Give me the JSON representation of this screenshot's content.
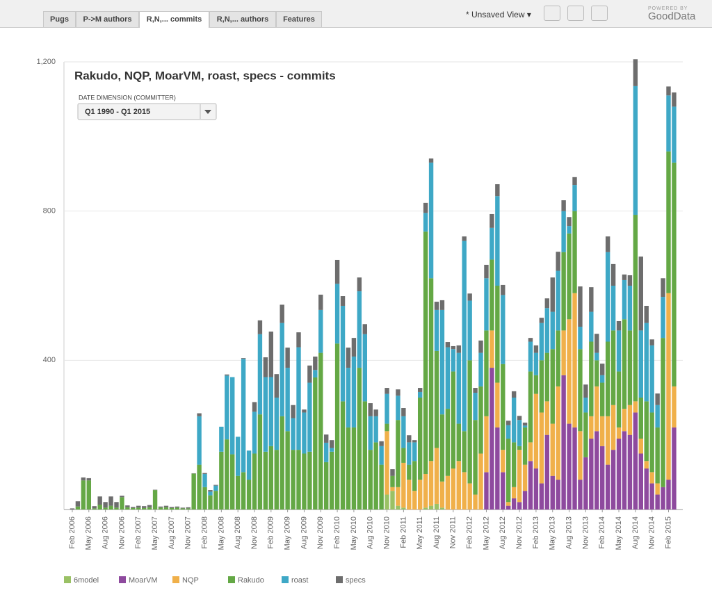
{
  "ui": {
    "tabs": [
      "Pugs",
      "P->M authors",
      "R,N,... commits",
      "R,N,... authors",
      "Features"
    ],
    "view": "* Unsaved View",
    "powered_by": "POWERED BY",
    "brand": "GoodData",
    "filter_label": "DATE DIMENSION (COMMITTER)",
    "filter_value": "Q1 1990 - Q1 2015"
  },
  "chart_data": {
    "type": "stacked_bar",
    "title": "Rakudo, NQP, MoarVM, roast, specs - commits",
    "categories": [
      "Feb 2006",
      null,
      null,
      "May 2006",
      null,
      null,
      "Aug 2006",
      null,
      null,
      "Nov 2006",
      null,
      null,
      "Feb 2007",
      null,
      null,
      "May 2007",
      null,
      null,
      "Aug 2007",
      null,
      null,
      "Nov 2007",
      null,
      null,
      "Feb 2008",
      null,
      null,
      "May 2008",
      null,
      null,
      "Aug 2008",
      null,
      null,
      "Nov 2008",
      null,
      null,
      "Feb 2009",
      null,
      null,
      "May 2009",
      null,
      null,
      "Aug 2009",
      null,
      null,
      "Nov 2009",
      null,
      null,
      "Feb 2010",
      null,
      null,
      "May 2010",
      null,
      null,
      "Aug 2010",
      null,
      null,
      "Nov 2010",
      null,
      null,
      "Feb 2011",
      null,
      null,
      "May 2011",
      null,
      null,
      "Aug 2011",
      null,
      null,
      "Nov 2011",
      null,
      null,
      "Feb 2012",
      null,
      null,
      "May 2012",
      null,
      null,
      "Aug 2012",
      null,
      null,
      "Nov 2012",
      null,
      null,
      "Feb 2013",
      null,
      null,
      "May 2013",
      null,
      null,
      "Aug 2013",
      null,
      null,
      "Nov 2013",
      null,
      null,
      "Feb 2014",
      null,
      null,
      "May 2014",
      null,
      null,
      "Aug 2014",
      null,
      null,
      "Nov 2014",
      null,
      null,
      "Feb 2015",
      null
    ],
    "ylim": [
      0,
      1200
    ],
    "yticks": [
      400,
      800,
      {
        "value": 1200,
        "label": "1,200"
      }
    ],
    "grid": true,
    "series": [
      {
        "name": "6model",
        "color": "#9ac165",
        "values": [
          0,
          0,
          0,
          0,
          0,
          0,
          0,
          0,
          0,
          0,
          0,
          0,
          0,
          0,
          0,
          0,
          0,
          0,
          0,
          0,
          0,
          0,
          0,
          0,
          0,
          0,
          0,
          0,
          0,
          0,
          0,
          0,
          0,
          0,
          0,
          0,
          0,
          0,
          0,
          0,
          0,
          0,
          0,
          0,
          0,
          0,
          0,
          0,
          0,
          0,
          0,
          0,
          0,
          0,
          0,
          0,
          0,
          40,
          50,
          10,
          5,
          0,
          0,
          0,
          5,
          10,
          15,
          5,
          0,
          0,
          0,
          0,
          0,
          0,
          0,
          0,
          0,
          0,
          0,
          0,
          0,
          0,
          0,
          0,
          0,
          0,
          0,
          0,
          0,
          0,
          0,
          0,
          0,
          0,
          0,
          0,
          0,
          0,
          0,
          0,
          0,
          0,
          0,
          0,
          0,
          0,
          0,
          0,
          0,
          0
        ]
      },
      {
        "name": "MoarVM",
        "color": "#8e4a9e",
        "values": [
          0,
          0,
          0,
          0,
          0,
          0,
          0,
          0,
          0,
          0,
          0,
          0,
          0,
          0,
          0,
          0,
          0,
          0,
          0,
          0,
          0,
          0,
          0,
          0,
          0,
          0,
          0,
          0,
          0,
          0,
          0,
          0,
          0,
          0,
          0,
          0,
          0,
          0,
          0,
          0,
          0,
          0,
          0,
          0,
          0,
          0,
          0,
          0,
          0,
          0,
          0,
          0,
          0,
          0,
          0,
          0,
          0,
          0,
          0,
          0,
          0,
          0,
          0,
          0,
          0,
          0,
          0,
          0,
          0,
          0,
          0,
          0,
          0,
          0,
          0,
          100,
          380,
          220,
          100,
          10,
          30,
          20,
          50,
          130,
          110,
          70,
          200,
          90,
          80,
          360,
          230,
          220,
          80,
          140,
          190,
          210,
          170,
          120,
          160,
          190,
          210,
          200,
          260,
          150,
          110,
          70,
          40,
          60,
          80,
          220
        ]
      },
      {
        "name": "NQP",
        "color": "#f0b04a",
        "values": [
          0,
          0,
          0,
          0,
          0,
          0,
          0,
          0,
          0,
          0,
          0,
          0,
          0,
          0,
          0,
          0,
          0,
          0,
          0,
          0,
          0,
          0,
          0,
          0,
          0,
          0,
          0,
          0,
          0,
          0,
          0,
          0,
          0,
          0,
          0,
          0,
          0,
          0,
          0,
          0,
          0,
          0,
          0,
          0,
          0,
          0,
          0,
          0,
          0,
          0,
          0,
          0,
          0,
          0,
          0,
          0,
          0,
          170,
          10,
          50,
          120,
          80,
          50,
          80,
          90,
          120,
          150,
          70,
          90,
          110,
          130,
          100,
          70,
          40,
          150,
          150,
          100,
          120,
          60,
          10,
          30,
          140,
          70,
          50,
          200,
          190,
          90,
          140,
          250,
          120,
          280,
          360,
          130,
          0,
          60,
          120,
          80,
          130,
          120,
          30,
          60,
          80,
          30,
          40,
          20,
          30,
          30,
          0,
          500,
          110
        ]
      },
      {
        "name": "Rakudo",
        "color": "#64a845",
        "values": [
          0,
          8,
          78,
          78,
          3,
          13,
          5,
          10,
          5,
          33,
          6,
          4,
          5,
          4,
          6,
          52,
          5,
          6,
          4,
          5,
          3,
          3,
          96,
          120,
          60,
          38,
          50,
          155,
          188,
          148,
          90,
          100,
          80,
          150,
          255,
          155,
          170,
          160,
          250,
          210,
          160,
          160,
          150,
          155,
          354,
          420,
          127,
          155,
          445,
          290,
          220,
          220,
          380,
          290,
          160,
          180,
          120,
          20,
          30,
          180,
          40,
          40,
          80,
          220,
          650,
          490,
          260,
          180,
          180,
          260,
          100,
          110,
          330,
          200,
          180,
          230,
          190,
          260,
          230,
          170,
          120,
          10,
          100,
          190,
          50,
          140,
          130,
          200,
          150,
          210,
          230,
          220,
          220,
          120,
          200,
          70,
          90,
          200,
          200,
          150,
          240,
          200,
          500,
          110,
          160,
          160,
          150,
          400,
          380,
          600
        ]
      },
      {
        "name": "roast",
        "color": "#3ea8c6",
        "values": [
          0,
          0,
          0,
          0,
          0,
          0,
          0,
          0,
          0,
          0,
          0,
          0,
          0,
          0,
          0,
          0,
          0,
          0,
          0,
          0,
          0,
          0,
          0,
          130,
          35,
          10,
          14,
          67,
          171,
          207,
          105,
          304,
          78,
          112,
          215,
          200,
          185,
          140,
          250,
          170,
          85,
          275,
          110,
          185,
          20,
          115,
          52,
          10,
          160,
          256,
          160,
          190,
          205,
          180,
          90,
          70,
          50,
          80,
          0,
          65,
          85,
          60,
          50,
          15,
          50,
          310,
          110,
          280,
          165,
          60,
          190,
          510,
          160,
          73,
          90,
          140,
          85,
          240,
          185,
          36,
          120,
          70,
          5,
          80,
          60,
          100,
          120,
          100,
          160,
          110,
          20,
          70,
          60,
          40,
          80,
          20,
          20,
          240,
          120,
          110,
          105,
          120,
          345,
          180,
          210,
          180,
          60,
          110,
          150,
          150
        ]
      },
      {
        "name": "specs",
        "color": "#6d6d6d",
        "values": [
          3,
          14,
          8,
          6,
          6,
          22,
          15,
          25,
          15,
          4,
          5,
          3,
          5,
          5,
          6,
          1,
          3,
          4,
          3,
          3,
          2,
          3,
          1,
          8,
          3,
          4,
          2,
          0,
          3,
          0,
          0,
          2,
          0,
          26,
          37,
          53,
          122,
          63,
          49,
          54,
          35,
          40,
          8,
          46,
          36,
          41,
          22,
          21,
          64,
          26,
          54,
          50,
          37,
          27,
          35,
          18,
          13,
          16,
          18,
          17,
          22,
          19,
          6,
          11,
          27,
          11,
          22,
          26,
          14,
          8,
          20,
          12,
          19,
          13,
          33,
          36,
          37,
          32,
          27,
          12,
          17,
          11,
          8,
          10,
          20,
          14,
          26,
          92,
          51,
          29,
          24,
          21,
          108,
          35,
          66,
          51,
          31,
          42,
          58,
          25,
          15,
          28,
          72,
          198,
          46,
          16,
          31,
          50,
          24,
          38
        ]
      }
    ]
  }
}
